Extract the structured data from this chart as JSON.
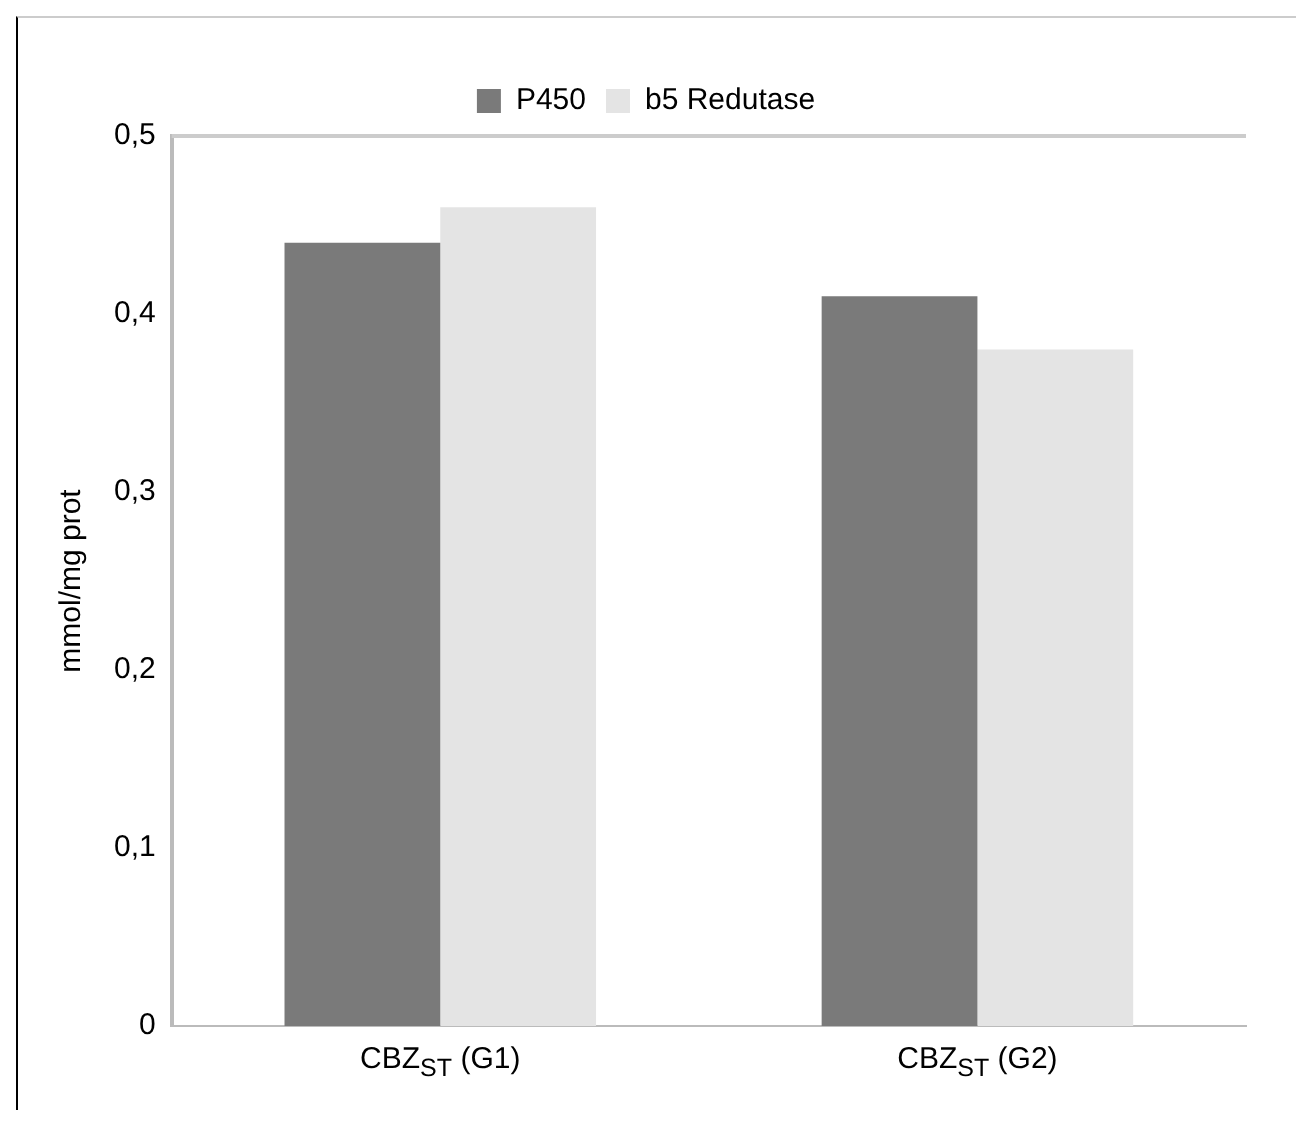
{
  "chart_data": {
    "type": "bar",
    "categories": [
      "CBZ$_{ST}$ (G1)",
      "CBZ$_{ST}$ (G2)"
    ],
    "series": [
      {
        "name": "P450",
        "color": "#7a7a7a",
        "values": [
          0.44,
          0.41
        ]
      },
      {
        "name": "b5 Redutase",
        "color": "#e4e4e4",
        "values": [
          0.46,
          0.38
        ]
      }
    ],
    "ylabel": "mmol/mg prot",
    "ylim": [
      0,
      0.5
    ],
    "yticks": [
      {
        "value": 0,
        "label": "0"
      },
      {
        "value": 0.1,
        "label": "0,1"
      },
      {
        "value": 0.2,
        "label": "0,2"
      },
      {
        "value": 0.3,
        "label": "0,3"
      },
      {
        "value": 0.4,
        "label": "0,4"
      },
      {
        "value": 0.5,
        "label": "0,5"
      }
    ],
    "grid": false,
    "legend": "top"
  }
}
